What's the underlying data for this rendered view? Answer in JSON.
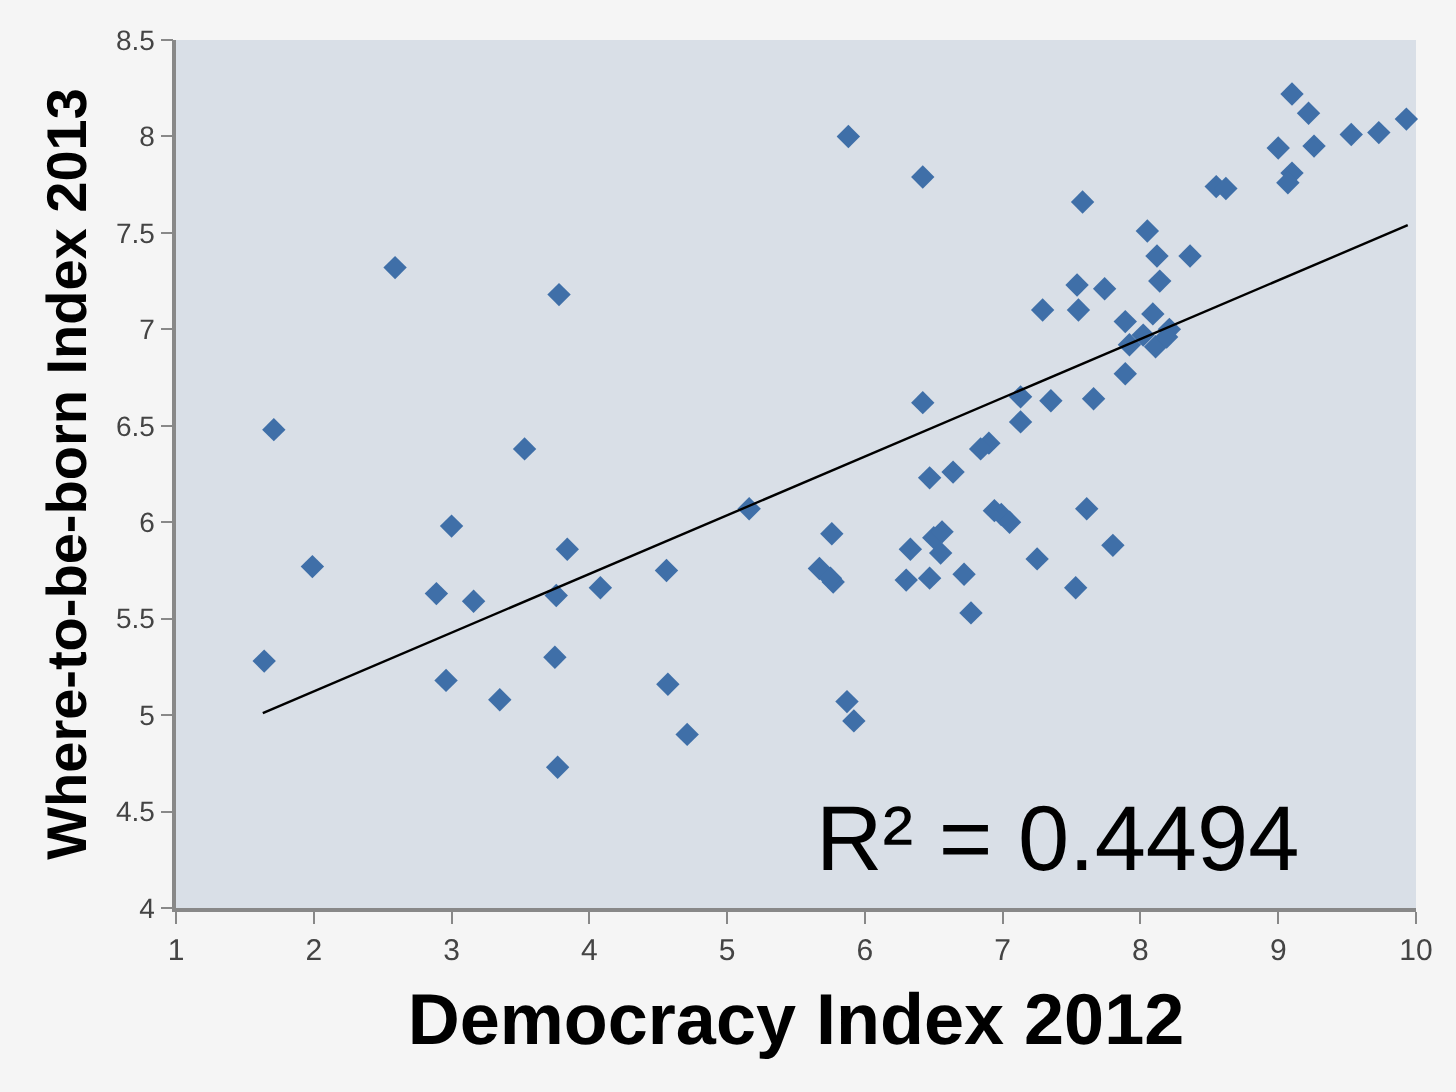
{
  "chart_data": {
    "type": "scatter",
    "xlabel": "Democracy Index 2012",
    "ylabel": "Where-to-be-born Index 2013",
    "xlim": [
      1,
      10
    ],
    "ylim": [
      4,
      8.5
    ],
    "xticks": [
      1,
      2,
      3,
      4,
      5,
      6,
      7,
      8,
      9,
      10
    ],
    "yticks": [
      4,
      4.5,
      5,
      5.5,
      6,
      6.5,
      7,
      7.5,
      8,
      8.5
    ],
    "grid": false,
    "annotations": [
      "R² = 0.4494"
    ],
    "series": [
      {
        "color": "#3f6fa8",
        "marker": "diamond",
        "x": [
          2.59,
          3.78,
          1.71,
          3.53,
          3.0,
          3.84,
          1.99,
          2.89,
          3.16,
          3.76,
          4.08,
          1.64,
          3.75,
          2.96,
          3.35,
          3.77,
          5.88,
          6.42,
          6.42,
          6.9,
          6.84,
          6.47,
          6.64,
          5.16,
          5.76,
          6.94,
          6.99,
          7.05,
          6.5,
          6.56,
          6.33,
          6.55,
          4.56,
          5.67,
          5.77,
          5.75,
          6.3,
          6.47,
          6.72,
          6.77,
          4.57,
          4.71,
          5.87,
          5.92,
          9.1,
          9.22,
          9.93,
          9.53,
          9.73,
          9.26,
          9.0,
          9.1,
          9.07,
          8.55,
          8.62,
          7.58,
          8.05,
          8.12,
          8.36,
          8.14,
          7.54,
          7.74,
          7.29,
          7.55,
          8.09,
          7.89,
          8.21,
          8.02,
          7.92,
          8.11,
          8.19,
          7.89,
          7.13,
          7.35,
          7.66,
          7.13,
          7.25,
          7.61,
          7.8,
          7.53
        ],
        "values": [
          7.32,
          7.18,
          6.48,
          6.38,
          5.98,
          5.86,
          5.77,
          5.63,
          5.59,
          5.62,
          5.66,
          5.28,
          5.3,
          5.18,
          5.08,
          4.73,
          8.0,
          7.79,
          6.62,
          6.41,
          6.38,
          6.23,
          6.26,
          6.07,
          5.94,
          6.06,
          6.04,
          6.0,
          5.92,
          5.95,
          5.86,
          5.84,
          5.75,
          5.76,
          5.69,
          5.71,
          5.7,
          5.71,
          5.73,
          5.53,
          5.16,
          4.9,
          5.07,
          4.97,
          8.22,
          8.12,
          8.09,
          8.01,
          8.02,
          7.95,
          7.94,
          7.81,
          7.76,
          7.74,
          7.73,
          7.66,
          7.51,
          7.38,
          7.38,
          7.25,
          7.23,
          7.21,
          7.1,
          7.1,
          7.08,
          7.04,
          7.0,
          6.97,
          6.92,
          6.91,
          6.96,
          6.77,
          6.65,
          6.63,
          6.64,
          6.52,
          5.81,
          6.07,
          5.88,
          5.66
        ]
      },
      {
        "type": "line",
        "color": "#000000",
        "x": [
          1.63,
          9.94
        ],
        "values": [
          5.01,
          7.54
        ]
      }
    ]
  }
}
